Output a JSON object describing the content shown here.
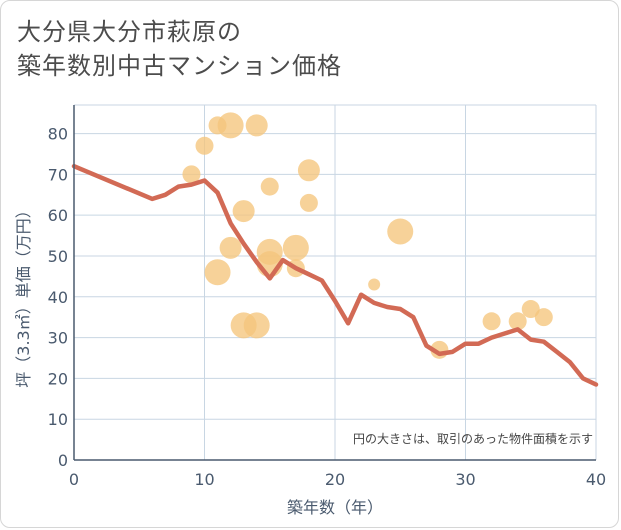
{
  "chart_data": {
    "type": "scatter",
    "title_lines": [
      "大分県大分市萩原の",
      "築年数別中古マンション価格"
    ],
    "xlabel": "築年数（年）",
    "ylabel": "坪（3.3㎡）単価（万円）",
    "xlim": [
      0,
      40
    ],
    "ylim": [
      0,
      87
    ],
    "x_ticks": [
      0,
      10,
      20,
      30,
      40
    ],
    "y_ticks": [
      0,
      10,
      20,
      30,
      40,
      50,
      60,
      70,
      80
    ],
    "grid": true,
    "note": "円の大きさは、取引のあった物件面積を示す",
    "colors": {
      "bubble": "#f5c57c",
      "line": "#d26a55",
      "grid": "#c8d6e3",
      "axis": "#4a5a6e"
    },
    "bubbles": [
      {
        "x": 9,
        "y": 70,
        "size": 2
      },
      {
        "x": 10,
        "y": 77,
        "size": 2
      },
      {
        "x": 11,
        "y": 82,
        "size": 2
      },
      {
        "x": 11,
        "y": 46,
        "size": 4
      },
      {
        "x": 12,
        "y": 82,
        "size": 4
      },
      {
        "x": 12,
        "y": 52,
        "size": 3
      },
      {
        "x": 13,
        "y": 61,
        "size": 3
      },
      {
        "x": 13,
        "y": 33,
        "size": 4
      },
      {
        "x": 14,
        "y": 82,
        "size": 3
      },
      {
        "x": 14,
        "y": 33,
        "size": 4
      },
      {
        "x": 15,
        "y": 67,
        "size": 2
      },
      {
        "x": 15,
        "y": 51,
        "size": 4
      },
      {
        "x": 15,
        "y": 48,
        "size": 4
      },
      {
        "x": 17,
        "y": 52,
        "size": 4
      },
      {
        "x": 17,
        "y": 47,
        "size": 2
      },
      {
        "x": 18,
        "y": 71,
        "size": 3
      },
      {
        "x": 18,
        "y": 63,
        "size": 2
      },
      {
        "x": 23,
        "y": 43,
        "size": 1
      },
      {
        "x": 25,
        "y": 56,
        "size": 4
      },
      {
        "x": 28,
        "y": 27,
        "size": 2
      },
      {
        "x": 32,
        "y": 34,
        "size": 2
      },
      {
        "x": 34,
        "y": 34,
        "size": 2
      },
      {
        "x": 35,
        "y": 37,
        "size": 2
      },
      {
        "x": 36,
        "y": 35,
        "size": 2
      }
    ],
    "trend_line": {
      "x": [
        0,
        6,
        7,
        8,
        9,
        10,
        11,
        12,
        13,
        14,
        15,
        16,
        17,
        18,
        19,
        20,
        21,
        22,
        23,
        24,
        25,
        26,
        27,
        28,
        29,
        30,
        31,
        32,
        33,
        34,
        35,
        36,
        37,
        38,
        39,
        40
      ],
      "y": [
        72,
        64,
        65,
        67,
        67.5,
        68.5,
        65.5,
        58,
        53,
        48.5,
        44.5,
        49,
        47,
        45.5,
        44,
        39,
        33.5,
        40.5,
        38.5,
        37.5,
        37,
        35,
        28,
        26,
        26.5,
        28.5,
        28.5,
        30,
        31,
        32,
        29.5,
        29,
        26.5,
        24,
        20,
        18.5
      ]
    }
  }
}
